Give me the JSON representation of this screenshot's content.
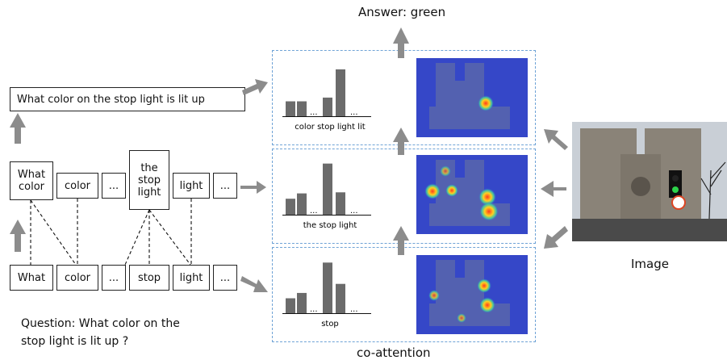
{
  "answer": "Answer: green",
  "question_phrase": "What color on the stop light is lit up",
  "phrase_level": [
    "What\ncolor",
    "color",
    "...",
    "the\nstop\nlight",
    "light",
    "..."
  ],
  "word_level": [
    "What",
    "color",
    "...",
    "stop",
    "light",
    "..."
  ],
  "question": "Question: What color on the\n                 stop light is lit up  ?",
  "image_label": "Image",
  "coattention_label": "co-attention",
  "panels": [
    {
      "caption": "color stop light lit",
      "bars": [
        0.28,
        0.28,
        0.35,
        0.88
      ],
      "ellipsis": "..."
    },
    {
      "caption": "the stop light",
      "bars": [
        0.3,
        0.4,
        0.96,
        0.42
      ],
      "ellipsis": "..."
    },
    {
      "caption": "stop",
      "bars": [
        0.28,
        0.38,
        0.95,
        0.55
      ],
      "ellipsis": "..."
    }
  ],
  "colors": {
    "arrow": "#8c8c8c",
    "bar": "#6b6b6b",
    "dash": "#6fa3d6",
    "heat_bg": "#3a4fd0"
  }
}
